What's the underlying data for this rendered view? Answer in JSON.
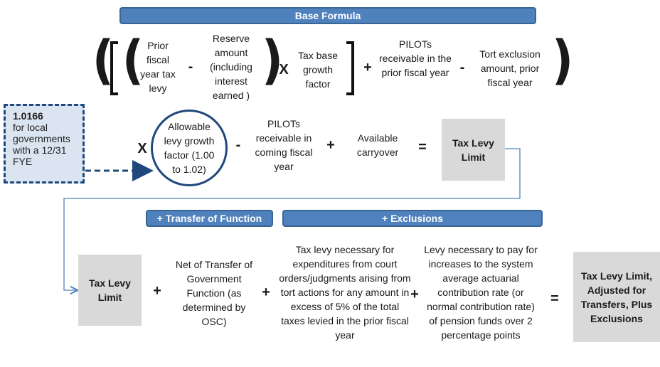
{
  "headers": {
    "base_formula": "Base Formula",
    "transfer": "+ Transfer of Function",
    "exclusions": "+ Exclusions"
  },
  "row1": {
    "prior_levy": "Prior fiscal year tax levy",
    "minus1": "-",
    "reserve": "Reserve amount (including interest earned )",
    "times1": "X",
    "tax_base_growth": "Tax base growth factor",
    "plus1": "+",
    "pilots_prior": "PILOTs receivable in the prior fiscal year",
    "minus2": "-",
    "tort_exclusion": "Tort exclusion amount, prior fiscal year"
  },
  "callout": {
    "value": "1.0166",
    "text": "for local governments with a 12/31 FYE"
  },
  "row2": {
    "times2": "X",
    "allowable_growth": "Allowable levy growth factor (1.00 to 1.02)",
    "minus3": "-",
    "pilots_coming": "PILOTs receivable in coming fiscal year",
    "plus2": "+",
    "carryover": "Available carryover",
    "equals1": "=",
    "tax_levy_limit": "Tax Levy Limit"
  },
  "row3": {
    "tax_levy_limit": "Tax Levy Limit",
    "plus3": "+",
    "net_transfer": "Net of Transfer of Government Function (as determined by OSC)",
    "plus4": "+",
    "tort_levy": "Tax levy necessary for expenditures from court orders/judgments arising from tort actions for any amount in excess of 5% of the total taxes levied in the prior fiscal year",
    "plus5": "+",
    "pension_levy": "Levy necessary to pay for increases to the system average actuarial contribution rate (or normal contribution rate) of pension funds over 2 percentage points",
    "equals2": "=",
    "adjusted": "Tax Levy Limit, Adjusted for Transfers, Plus Exclusions"
  },
  "colors": {
    "header_fill": "#4f81bd",
    "dark_blue": "#1f497d",
    "callout_fill": "#dbe5f1",
    "gray_box": "#d9d9d9",
    "connector": "#4f81bd"
  }
}
